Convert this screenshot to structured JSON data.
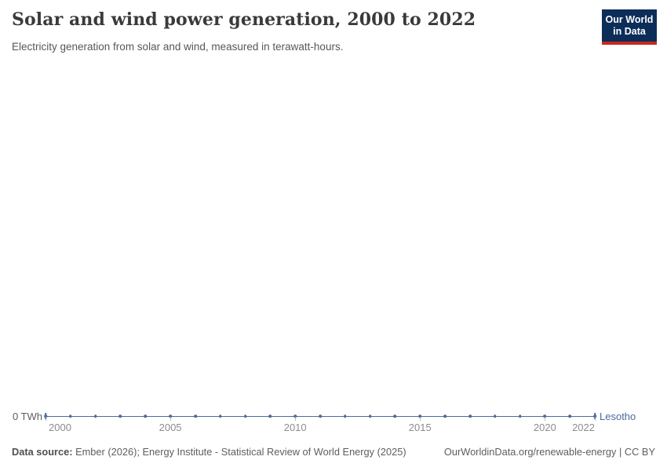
{
  "header": {
    "title": "Solar and wind power generation, 2000 to 2022",
    "subtitle": "Electricity generation from solar and wind, measured in terawatt-hours.",
    "logo": {
      "line1": "Our World",
      "line2": "in Data",
      "background_color": "#0d2d59",
      "accent_bar_color": "#c7291f",
      "text_color": "#ffffff"
    }
  },
  "chart_data": {
    "type": "line",
    "title": "Solar and wind power generation, 2000 to 2022",
    "subtitle": "Electricity generation from solar and wind, measured in terawatt-hours.",
    "unit": "TWh",
    "xlabel": "",
    "ylabel": "",
    "grid": false,
    "ylim": [
      0,
      0
    ],
    "x": [
      2000,
      2001,
      2002,
      2003,
      2004,
      2005,
      2006,
      2007,
      2008,
      2009,
      2010,
      2011,
      2012,
      2013,
      2014,
      2015,
      2016,
      2017,
      2018,
      2019,
      2020,
      2021,
      2022
    ],
    "series": [
      {
        "name": "Lesotho",
        "color": "#4c6a9c",
        "values": [
          0,
          0,
          0,
          0,
          0,
          0,
          0,
          0,
          0,
          0,
          0,
          0,
          0,
          0,
          0,
          0,
          0,
          0,
          0,
          0,
          0,
          0,
          0
        ]
      }
    ],
    "x_tick_labels": [
      "2000",
      "2005",
      "2010",
      "2015",
      "2020",
      "2022"
    ],
    "y_tick_labels": [
      "0 TWh"
    ],
    "legend_position": "end-of-line-label"
  },
  "footer": {
    "source_label": "Data source:",
    "source_text": "Ember (2026); Energy Institute - Statistical Review of World Energy (2025)",
    "link_text": "OurWorldinData.org/renewable-energy | CC BY"
  }
}
